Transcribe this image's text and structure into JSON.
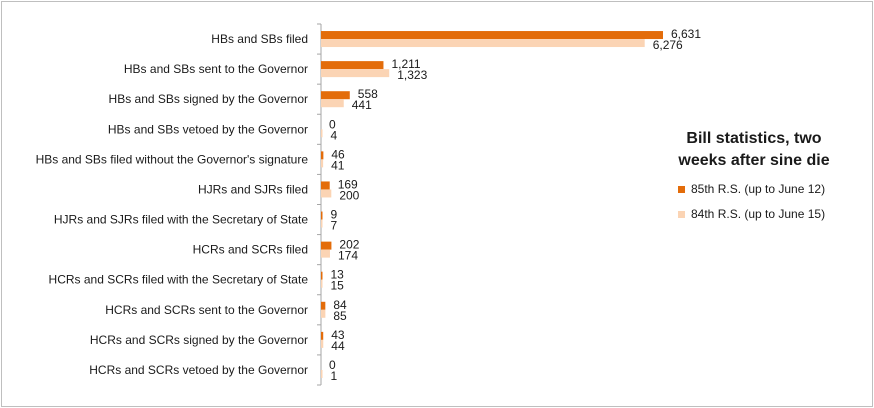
{
  "chart_data": {
    "type": "bar",
    "orientation": "horizontal",
    "title_lines": [
      "Bill statistics, two",
      "weeks after sine die"
    ],
    "categories": [
      "HBs and SBs filed",
      "HBs and SBs sent to the Governor",
      "HBs and SBs signed by the Governor",
      "HBs and SBs vetoed by the Governor",
      "HBs and SBs filed without the Governor's signature",
      "HJRs and SJRs filed",
      "HJRs and SJRs filed with the Secretary of State",
      "HCRs and SCRs filed",
      "HCRs and SCRs filed with the Secretary of State",
      "HCRs and SCRs sent to the Governor",
      "HCRs and SCRs signed by the Governor",
      "HCRs and SCRs vetoed by the Governor"
    ],
    "series": [
      {
        "name": "85th R.S. (up to June 12)",
        "color": "#e36c0a",
        "values": [
          6631,
          1211,
          558,
          0,
          46,
          169,
          9,
          202,
          13,
          84,
          43,
          0
        ],
        "labels": [
          "6,631",
          "1,211",
          "558",
          "0",
          "46",
          "169",
          "9",
          "202",
          "13",
          "84",
          "43",
          "0"
        ]
      },
      {
        "name": "84th R.S. (up to June 15)",
        "color": "#fbd4b4",
        "values": [
          6276,
          1323,
          441,
          4,
          41,
          200,
          7,
          174,
          15,
          85,
          44,
          1
        ],
        "labels": [
          "6,276",
          "1,323",
          "441",
          "4",
          "41",
          "200",
          "7",
          "174",
          "15",
          "85",
          "44",
          "1"
        ]
      }
    ],
    "xlim": [
      0,
      7000
    ],
    "grid": false,
    "legend_position": "right"
  }
}
